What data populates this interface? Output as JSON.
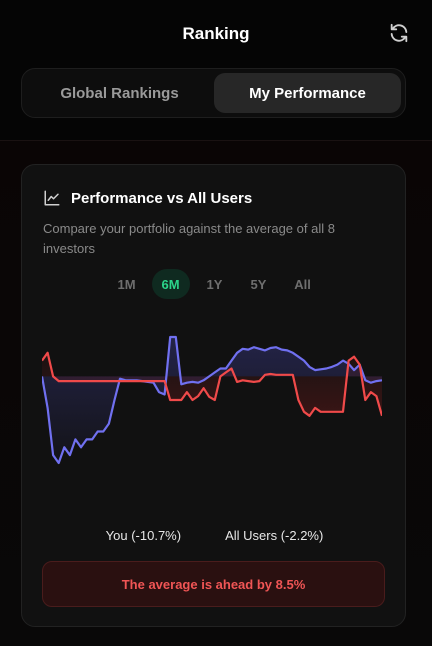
{
  "header": {
    "title": "Ranking",
    "refresh_icon": "refresh-icon"
  },
  "tabs": [
    {
      "label": "Global Rankings",
      "active": false
    },
    {
      "label": "My Performance",
      "active": true
    }
  ],
  "card": {
    "title": "Performance vs All Users",
    "icon": "line-chart-icon",
    "description": "Compare your portfolio against the average of all 8 investors",
    "ranges": [
      "1M",
      "6M",
      "1Y",
      "5Y",
      "All"
    ],
    "active_range": "6M",
    "legend": {
      "you": "You (-10.7%)",
      "all": "All Users (-2.2%)"
    },
    "banner": "The average is ahead by 8.5%"
  },
  "colors": {
    "you": "#7070f0",
    "all": "#f04a4a",
    "accent": "#2bd48a"
  },
  "chart_data": {
    "type": "line",
    "series": [
      {
        "name": "You (-10.7%)",
        "values": [
          0,
          -4,
          -10,
          -11,
          -9,
          -10,
          -8,
          -9,
          -8,
          -8,
          -7,
          -7,
          -6,
          -3,
          -0.3,
          -0.5,
          -0.5,
          -0.5,
          -0.6,
          -0.7,
          -0.8,
          -2,
          -2.3,
          5,
          5,
          -1,
          -0.8,
          -0.7,
          -0.8,
          -0.5,
          0,
          0.5,
          1,
          1,
          2,
          3,
          3.5,
          3.4,
          3.7,
          3.5,
          3.3,
          3.6,
          3.7,
          3.4,
          3.3,
          3,
          2.5,
          2,
          1.2,
          0.8,
          0.9,
          1,
          1.2,
          1.5,
          2,
          1.6,
          0.8,
          1.5,
          -0.5,
          -0.8,
          -0.6,
          -0.5
        ]
      },
      {
        "name": "All Users (-2.2%)",
        "values": [
          2,
          3,
          0,
          -0.6,
          -0.6,
          -0.6,
          -0.6,
          -0.6,
          -0.6,
          -0.6,
          -0.6,
          -0.6,
          -0.6,
          -0.6,
          -0.6,
          -0.6,
          -0.6,
          -0.6,
          -0.6,
          -0.6,
          -0.6,
          -0.6,
          -0.6,
          -3,
          -3,
          -3,
          -2,
          -3,
          -2.5,
          -1.5,
          -2.6,
          -3,
          0,
          0.5,
          1,
          -0.7,
          -0.5,
          -0.6,
          -0.7,
          -0.6,
          0.2,
          0.3,
          0.2,
          0.2,
          0.2,
          0.2,
          -3,
          -4.5,
          -5,
          -4,
          -4.5,
          -4.5,
          -4.5,
          -4.5,
          -4.5,
          2,
          2.5,
          1.5,
          -3,
          -2,
          -2.5,
          -5
        ]
      }
    ],
    "baseline": 0,
    "grid": false,
    "legend_position": "bottom"
  }
}
